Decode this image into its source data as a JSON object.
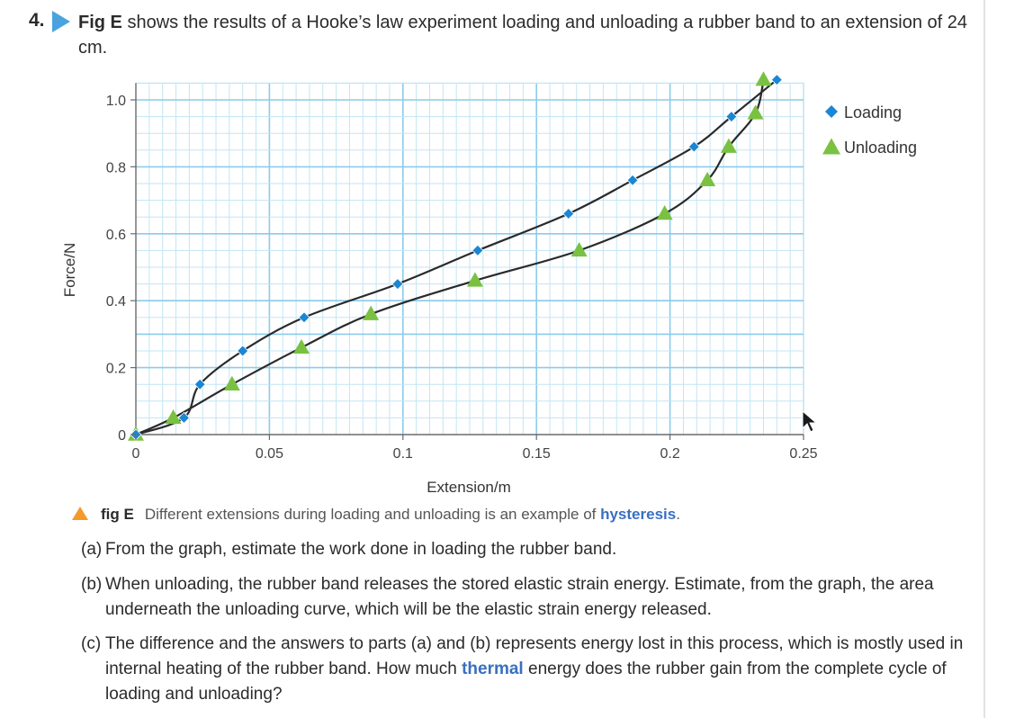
{
  "question": {
    "number": "4.",
    "fig_ref": "Fig E",
    "text": " shows the results of a Hooke’s law experiment loading and unloading a rubber band to an extension of 24 cm."
  },
  "chart_data": {
    "type": "scatter",
    "x": [],
    "xlabel": "Extension/m",
    "ylabel": "Force/N",
    "xlim": [
      0,
      0.25
    ],
    "ylim": [
      0,
      1.05
    ],
    "x_ticks": [
      {
        "v": 0,
        "label": "0"
      },
      {
        "v": 0.05,
        "label": "0.05"
      },
      {
        "v": 0.1,
        "label": "0.1"
      },
      {
        "v": 0.15,
        "label": "0.15"
      },
      {
        "v": 0.2,
        "label": "0.2"
      },
      {
        "v": 0.25,
        "label": "0.25"
      }
    ],
    "y_ticks": [
      {
        "v": 0,
        "label": "0"
      },
      {
        "v": 0.2,
        "label": "0.2"
      },
      {
        "v": 0.4,
        "label": "0.4"
      },
      {
        "v": 0.6,
        "label": "0.6"
      },
      {
        "v": 0.8,
        "label": "0.8"
      },
      {
        "v": 1.0,
        "label": "1.0"
      }
    ],
    "grid": true,
    "legend": "top-right",
    "series": [
      {
        "name": "Loading",
        "marker": "diamond",
        "color": "#1b86d4",
        "points": [
          [
            0.0,
            0.0
          ],
          [
            0.018,
            0.05
          ],
          [
            0.024,
            0.15
          ],
          [
            0.04,
            0.25
          ],
          [
            0.063,
            0.35
          ],
          [
            0.098,
            0.45
          ],
          [
            0.128,
            0.55
          ],
          [
            0.162,
            0.66
          ],
          [
            0.186,
            0.76
          ],
          [
            0.209,
            0.86
          ],
          [
            0.223,
            0.95
          ],
          [
            0.24,
            1.06
          ]
        ]
      },
      {
        "name": "Unloading",
        "marker": "triangle",
        "color": "#7ac142",
        "points": [
          [
            0.0,
            0.0
          ],
          [
            0.014,
            0.05
          ],
          [
            0.036,
            0.15
          ],
          [
            0.062,
            0.26
          ],
          [
            0.088,
            0.36
          ],
          [
            0.127,
            0.46
          ],
          [
            0.166,
            0.55
          ],
          [
            0.198,
            0.66
          ],
          [
            0.214,
            0.76
          ],
          [
            0.222,
            0.86
          ],
          [
            0.232,
            0.96
          ],
          [
            0.235,
            1.06
          ]
        ]
      }
    ]
  },
  "caption": {
    "label": "fig E",
    "text": "Different extensions during loading and unloading is an example of ",
    "keyword": "hysteresis",
    "end": ".",
    "accent_color": "#f39a2b"
  },
  "parts": [
    {
      "label": "(a)",
      "text": "From the graph, estimate the work done in loading the rubber band."
    },
    {
      "label": "(b)",
      "text": "When unloading, the rubber band releases the stored elastic strain energy. Estimate, from the graph, the area underneath the unloading curve, which will be the elastic strain energy released."
    },
    {
      "label": "(c)",
      "pre": "The difference and the answers to parts (a) and (b) represents energy lost in this process, which is mostly used in internal heating of the rubber band. How much ",
      "keyword": "thermal",
      "post": " energy does the rubber gain from the complete cycle of loading and unloading?"
    }
  ]
}
